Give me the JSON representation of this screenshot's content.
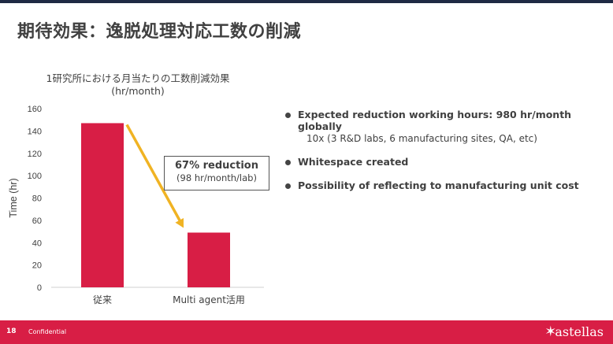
{
  "slide": {
    "title": "期待効果：逸脱処理対応工数の削減",
    "page_number": "18",
    "confidential": "Confidential",
    "logo_text": "astellas"
  },
  "chart_title_line1": "1研究所における月当たりの工数削減効果",
  "chart_title_line2": "(hr/month)",
  "callout": {
    "main": "67% reduction",
    "sub": "(98 hr/month/lab)"
  },
  "bullets": [
    {
      "text": "Expected reduction working hours: 980 hr/month globally",
      "detail": "10x (3 R&D labs, 6 manufacturing sites, QA, etc)"
    },
    {
      "text": "Whitespace created"
    },
    {
      "text": "Possibility of reflecting to manufacturing unit cost"
    }
  ],
  "colors": {
    "bar": "#d81e45",
    "arrow": "#f0b323",
    "footer": "#d81e45"
  },
  "chart_data": {
    "type": "bar",
    "title": "1研究所における月当たりの工数削減効果 (hr/month)",
    "ylabel": "Time (hr)",
    "categories": [
      "従来",
      "Multi agent活用"
    ],
    "values": [
      147,
      49
    ],
    "ylim": [
      0,
      160
    ],
    "yticks": [
      0,
      20,
      40,
      60,
      80,
      100,
      120,
      140,
      160
    ],
    "grid": false
  }
}
